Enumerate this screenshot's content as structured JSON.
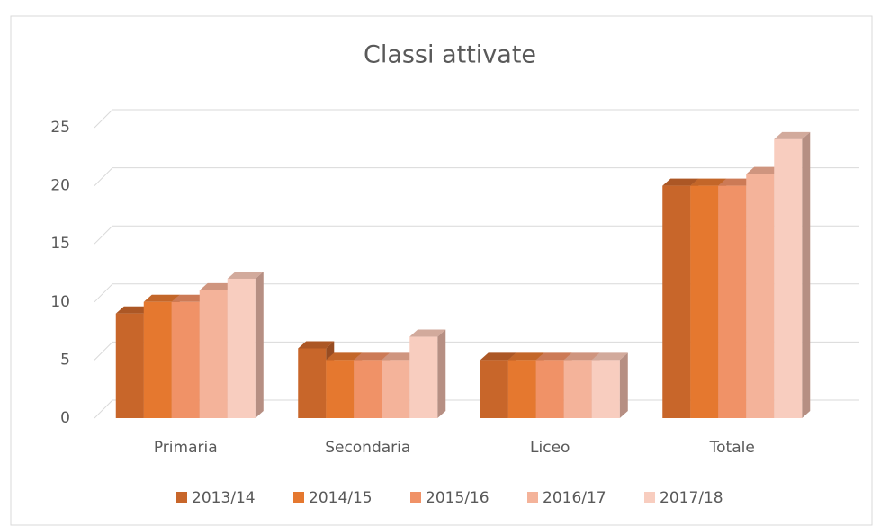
{
  "chart_data": {
    "type": "bar3d",
    "title": "Classi attivate",
    "categories": [
      "Primaria",
      "Secondaria",
      "Liceo",
      "Totale"
    ],
    "series": [
      {
        "name": "2013/14",
        "color": "#c8662a",
        "values": [
          9,
          6,
          5,
          20
        ]
      },
      {
        "name": "2014/15",
        "color": "#e5782f",
        "values": [
          10,
          5,
          5,
          20
        ]
      },
      {
        "name": "2015/16",
        "color": "#f09267",
        "values": [
          10,
          5,
          5,
          20
        ]
      },
      {
        "name": "2016/17",
        "color": "#f4b39a",
        "values": [
          11,
          5,
          5,
          21
        ]
      },
      {
        "name": "2017/18",
        "color": "#f8cdbf",
        "values": [
          12,
          7,
          5,
          24
        ]
      }
    ],
    "ylim": [
      0,
      25
    ],
    "yticks": [
      0,
      5,
      10,
      15,
      20,
      25
    ],
    "grid": true,
    "legend": "bottom"
  }
}
